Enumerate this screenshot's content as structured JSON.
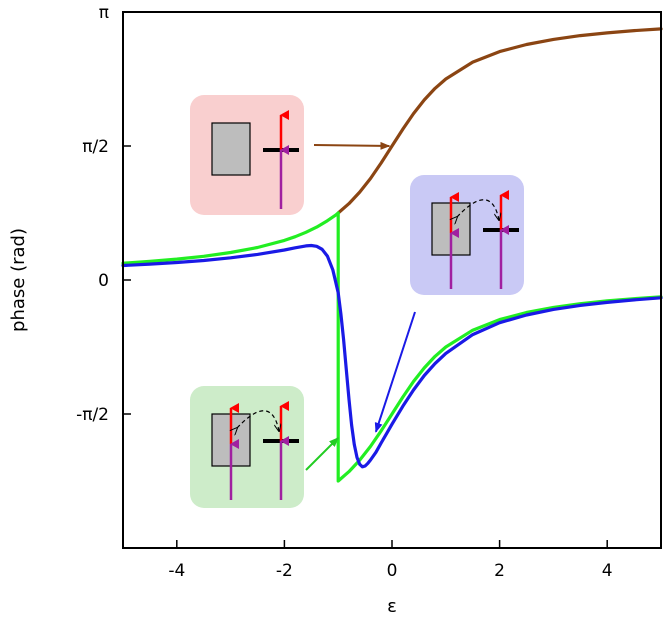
{
  "chart_data": {
    "type": "line",
    "xlabel": "ε",
    "ylabel": "phase (rad)",
    "xlim": [
      -5,
      5
    ],
    "ylim": [
      -3.14159,
      3.14159
    ],
    "x_ticks": [
      {
        "value": -4,
        "label": "-4"
      },
      {
        "value": -2,
        "label": "-2"
      },
      {
        "value": 0,
        "label": "0"
      },
      {
        "value": 2,
        "label": "2"
      },
      {
        "value": 4,
        "label": "4"
      }
    ],
    "y_ticks": [
      {
        "value": -1.5708,
        "label": "-π/2"
      },
      {
        "value": 0,
        "label": "0"
      },
      {
        "value": 1.5708,
        "label": "π/2"
      },
      {
        "value": 3.14159,
        "label": "π"
      }
    ],
    "series": [
      {
        "color": "#8b4513",
        "x": [
          -1,
          -0.8,
          -0.6,
          -0.4,
          -0.2,
          0,
          0.2,
          0.4,
          0.6,
          0.8,
          1,
          1.5,
          2,
          2.5,
          3,
          3.5,
          4,
          4.5,
          5
        ],
        "y": [
          0.785,
          0.896,
          1.03,
          1.19,
          1.373,
          1.571,
          1.768,
          1.951,
          2.111,
          2.246,
          2.356,
          2.554,
          2.677,
          2.761,
          2.82,
          2.865,
          2.897,
          2.923,
          2.944
        ]
      },
      {
        "color": "#22ee22",
        "x": [
          -5,
          -4.5,
          -4,
          -3.5,
          -3,
          -2.5,
          -2,
          -1.8,
          -1.6,
          -1.4,
          -1.2,
          -1.05,
          -1,
          -1,
          -0.8,
          -0.6,
          -0.4,
          -0.2,
          0,
          0.2,
          0.4,
          0.6,
          0.8,
          1,
          1.5,
          2,
          2.5,
          3,
          3.5,
          4,
          4.5,
          5
        ],
        "y": [
          0.197,
          0.219,
          0.245,
          0.278,
          0.322,
          0.381,
          0.464,
          0.507,
          0.559,
          0.62,
          0.695,
          0.76,
          0.785,
          -2.356,
          -2.246,
          -2.111,
          -1.951,
          -1.768,
          -1.571,
          -1.373,
          -1.19,
          -1.03,
          -0.896,
          -0.785,
          -0.588,
          -0.464,
          -0.381,
          -0.322,
          -0.278,
          -0.245,
          -0.219,
          -0.197
        ]
      },
      {
        "color": "#1a1ae6",
        "x": [
          -5,
          -4.5,
          -4,
          -3.5,
          -3,
          -2.5,
          -2,
          -1.8,
          -1.6,
          -1.5,
          -1.4,
          -1.3,
          -1.2,
          -1.1,
          -1.0,
          -0.95,
          -0.9,
          -0.85,
          -0.8,
          -0.75,
          -0.7,
          -0.65,
          -0.6,
          -0.55,
          -0.5,
          -0.45,
          -0.4,
          -0.3,
          -0.2,
          -0.1,
          0,
          0.2,
          0.4,
          0.6,
          0.8,
          1,
          1.5,
          2,
          2.5,
          3,
          3.5,
          4,
          4.5,
          5
        ],
        "y": [
          0.17,
          0.186,
          0.205,
          0.229,
          0.26,
          0.3,
          0.352,
          0.378,
          0.4,
          0.405,
          0.395,
          0.36,
          0.28,
          0.12,
          -0.15,
          -0.4,
          -0.7,
          -1.05,
          -1.4,
          -1.7,
          -1.93,
          -2.08,
          -2.16,
          -2.19,
          -2.18,
          -2.15,
          -2.11,
          -2.02,
          -1.91,
          -1.8,
          -1.69,
          -1.48,
          -1.29,
          -1.12,
          -0.98,
          -0.86,
          -0.64,
          -0.5,
          -0.41,
          -0.345,
          -0.298,
          -0.262,
          -0.233,
          -0.209
        ]
      }
    ],
    "annotations": [
      {
        "box_color": "#f9cfcf",
        "arrow_color": "#8b4513",
        "arrow_to": {
          "x": -0.05,
          "y": 1.571
        }
      },
      {
        "box_color": "#c9c9f5",
        "arrow_color": "#1a1ae6",
        "arrow_to": {
          "x": -0.3,
          "y": -1.78
        }
      },
      {
        "box_color": "#cdecc9",
        "arrow_color": "#22cc22",
        "arrow_to": {
          "x": -1.0,
          "y": -1.85
        }
      }
    ]
  }
}
